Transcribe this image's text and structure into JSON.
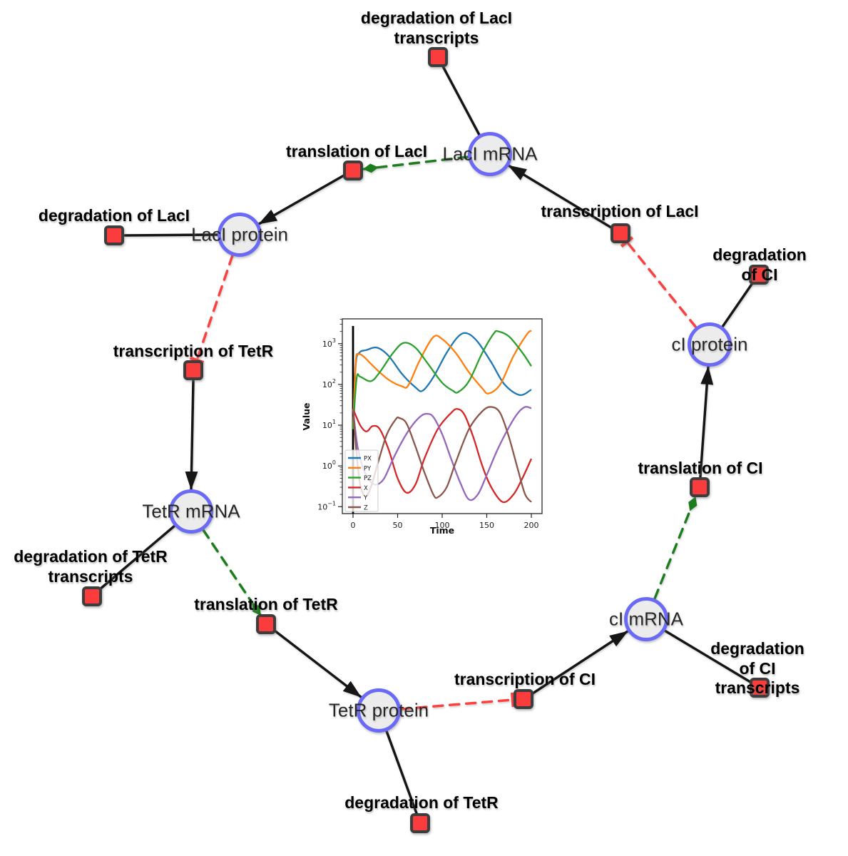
{
  "diagram": {
    "species": [
      {
        "label": "LacI mRNA"
      },
      {
        "label": "LacI protein"
      },
      {
        "label": "TetR mRNA"
      },
      {
        "label": "TetR protein"
      },
      {
        "label": "cI mRNA"
      },
      {
        "label": "cI protein"
      }
    ],
    "reactions": [
      {
        "label": "degradation of LacI\ntranscripts"
      },
      {
        "label": "translation of LacI"
      },
      {
        "label": "degradation of LacI"
      },
      {
        "label": "transcription of TetR"
      },
      {
        "label": "degradation of TetR\ntranscripts"
      },
      {
        "label": "translation of TetR"
      },
      {
        "label": "degradation of TetR"
      },
      {
        "label": "transcription of CI"
      },
      {
        "label": "degradation of CI\ntranscripts"
      },
      {
        "label": "translation of CI"
      },
      {
        "label": "degradation of CI"
      },
      {
        "label": "transcription of LacI"
      }
    ]
  },
  "colors": {
    "background": "#ffffff",
    "species_fill": "#ececec",
    "species_border": "#6a6af7",
    "reaction_fill": "#fa3c3c",
    "reaction_border": "#3d3d3d",
    "reaction_edge": "#141414",
    "activation_edge": "#1e7d1e",
    "inhibition_edge": "#fb4040"
  },
  "chart_data": {
    "type": "line",
    "title": "",
    "xlabel": "Time",
    "ylabel": "Value",
    "yscale": "log",
    "xlim": [
      -12,
      212
    ],
    "ylog_lim": [
      -1.17,
      3.61
    ],
    "xticks": [
      0,
      50,
      100,
      150,
      200
    ],
    "ytick_exponents": [
      -1,
      0,
      1,
      2,
      3
    ],
    "ytick_labels": [
      "10⁻¹",
      "10⁰",
      "10¹",
      "10²",
      "10³"
    ],
    "legend_position": "lower left",
    "grid": false,
    "vline_at_x": 0,
    "series": [
      {
        "name": "PX",
        "color": "#1f77b4",
        "points": [
          [
            0,
            8
          ],
          [
            3,
            300
          ],
          [
            7,
            600
          ],
          [
            15,
            700
          ],
          [
            27,
            800
          ],
          [
            40,
            500
          ],
          [
            55,
            180
          ],
          [
            70,
            85
          ],
          [
            78,
            70
          ],
          [
            90,
            150
          ],
          [
            105,
            600
          ],
          [
            118,
            1500
          ],
          [
            128,
            1800
          ],
          [
            140,
            1100
          ],
          [
            155,
            350
          ],
          [
            170,
            100
          ],
          [
            187,
            55
          ],
          [
            200,
            75
          ]
        ]
      },
      {
        "name": "PY",
        "color": "#ff7f0e",
        "points": [
          [
            0,
            8
          ],
          [
            3,
            350
          ],
          [
            6,
            550
          ],
          [
            12,
            480
          ],
          [
            25,
            250
          ],
          [
            40,
            130
          ],
          [
            55,
            90
          ],
          [
            62,
            95
          ],
          [
            75,
            400
          ],
          [
            90,
            1450
          ],
          [
            100,
            1300
          ],
          [
            115,
            600
          ],
          [
            130,
            200
          ],
          [
            145,
            80
          ],
          [
            152,
            60
          ],
          [
            165,
            100
          ],
          [
            180,
            500
          ],
          [
            195,
            1700
          ],
          [
            200,
            2100
          ]
        ]
      },
      {
        "name": "PZ",
        "color": "#2ca02c",
        "points": [
          [
            0,
            8
          ],
          [
            4,
            140
          ],
          [
            8,
            155
          ],
          [
            20,
            120
          ],
          [
            30,
            200
          ],
          [
            45,
            600
          ],
          [
            57,
            1050
          ],
          [
            70,
            800
          ],
          [
            85,
            300
          ],
          [
            100,
            110
          ],
          [
            112,
            70
          ],
          [
            118,
            65
          ],
          [
            130,
            120
          ],
          [
            145,
            600
          ],
          [
            158,
            1800
          ],
          [
            163,
            2000
          ],
          [
            175,
            1500
          ],
          [
            190,
            600
          ],
          [
            200,
            280
          ]
        ]
      },
      {
        "name": "X",
        "color": "#d62728",
        "points": [
          [
            0,
            25
          ],
          [
            8,
            10
          ],
          [
            15,
            7
          ],
          [
            22,
            9.5
          ],
          [
            30,
            8
          ],
          [
            40,
            2.5
          ],
          [
            50,
            0.5
          ],
          [
            60,
            0.22
          ],
          [
            70,
            0.35
          ],
          [
            80,
            1.5
          ],
          [
            95,
            8
          ],
          [
            110,
            20
          ],
          [
            117,
            25
          ],
          [
            125,
            18
          ],
          [
            135,
            5
          ],
          [
            145,
            1
          ],
          [
            155,
            0.3
          ],
          [
            168,
            0.13
          ],
          [
            180,
            0.2
          ],
          [
            190,
            0.5
          ],
          [
            200,
            1.5
          ]
        ]
      },
      {
        "name": "Y",
        "color": "#9467bd",
        "points": [
          [
            0,
            25
          ],
          [
            5,
            3
          ],
          [
            12,
            0.8
          ],
          [
            20,
            0.4
          ],
          [
            27,
            0.35
          ],
          [
            35,
            0.5
          ],
          [
            45,
            1.5
          ],
          [
            55,
            4
          ],
          [
            65,
            9
          ],
          [
            75,
            16
          ],
          [
            82,
            19
          ],
          [
            90,
            16
          ],
          [
            100,
            6
          ],
          [
            110,
            1.5
          ],
          [
            120,
            0.4
          ],
          [
            130,
            0.15
          ],
          [
            140,
            0.2
          ],
          [
            150,
            0.6
          ],
          [
            162,
            2.5
          ],
          [
            175,
            9
          ],
          [
            185,
            20
          ],
          [
            193,
            28
          ],
          [
            200,
            26
          ]
        ]
      },
      {
        "name": "Z",
        "color": "#8c564b",
        "points": [
          [
            0,
            25
          ],
          [
            4,
            2
          ],
          [
            8,
            0.35
          ],
          [
            14,
            0.18
          ],
          [
            20,
            0.3
          ],
          [
            28,
            1.2
          ],
          [
            38,
            6
          ],
          [
            48,
            14
          ],
          [
            52,
            15
          ],
          [
            60,
            11
          ],
          [
            70,
            3
          ],
          [
            80,
            0.7
          ],
          [
            90,
            0.2
          ],
          [
            95,
            0.17
          ],
          [
            105,
            0.3
          ],
          [
            115,
            1.2
          ],
          [
            130,
            8
          ],
          [
            145,
            22
          ],
          [
            155,
            28
          ],
          [
            165,
            20
          ],
          [
            175,
            5
          ],
          [
            185,
            0.8
          ],
          [
            193,
            0.2
          ],
          [
            200,
            0.13
          ]
        ]
      }
    ]
  }
}
